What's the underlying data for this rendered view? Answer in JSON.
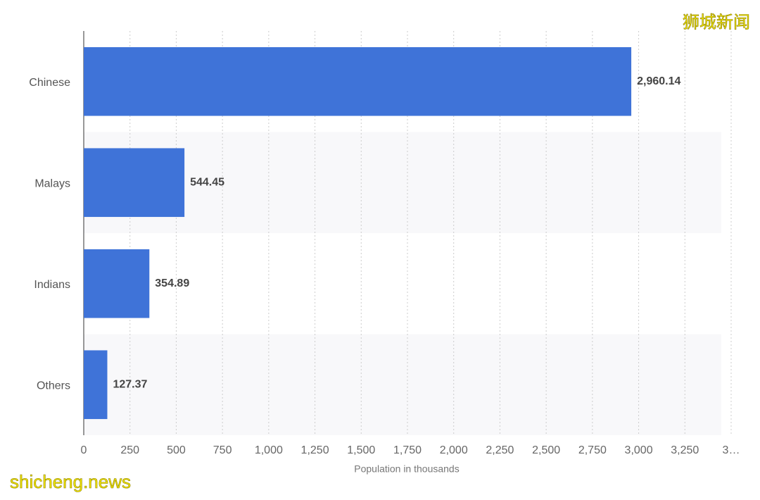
{
  "chart_data": {
    "type": "barh",
    "categories": [
      "Chinese",
      "Malays",
      "Indians",
      "Others"
    ],
    "values": [
      2960.14,
      544.45,
      354.89,
      127.37
    ],
    "value_labels": [
      "2,960.14",
      "544.45",
      "354.89",
      "127.37"
    ],
    "color": "#3f73d8",
    "xlabel": "Population in thousands",
    "xlim": [
      0,
      3500
    ],
    "xticks": [
      0,
      250,
      500,
      750,
      {
        "value": 1000,
        "label": "1,000"
      },
      {
        "value": 1250,
        "label": "1,250"
      },
      {
        "value": 1500,
        "label": "1,500"
      },
      {
        "value": 1750,
        "label": "1,750"
      },
      {
        "value": 2000,
        "label": "2,000"
      },
      {
        "value": 2250,
        "label": "2,250"
      },
      {
        "value": 2500,
        "label": "2,500"
      },
      {
        "value": 2750,
        "label": "2,750"
      },
      {
        "value": 3000,
        "label": "3,000"
      },
      {
        "value": 3250,
        "label": "3,250"
      },
      {
        "value": 3500,
        "label": "3…"
      }
    ],
    "grid": true,
    "watermarks": [
      "狮城新闻",
      "shicheng.news"
    ]
  }
}
